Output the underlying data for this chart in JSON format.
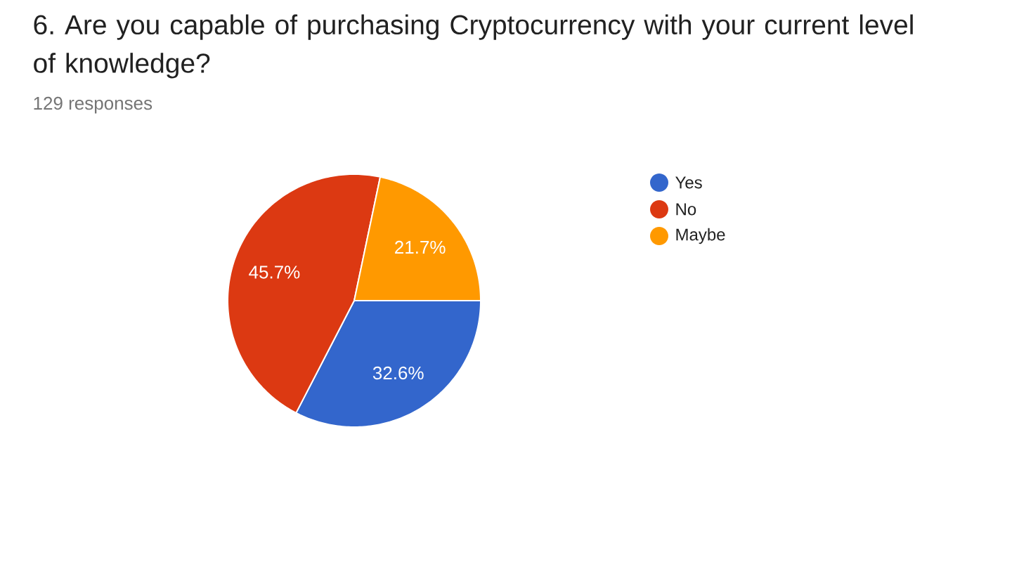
{
  "chart_data": {
    "type": "pie",
    "title": "6. Are you capable of purchasing Cryptocurrency with your current level of knowledge?",
    "subtitle": "129 responses",
    "categories": [
      "Yes",
      "No",
      "Maybe"
    ],
    "values": [
      32.6,
      45.7,
      21.7
    ],
    "colors": [
      "#3366cc",
      "#dc3912",
      "#ff9900"
    ],
    "value_labels": [
      "32.6%",
      "45.7%",
      "21.7%"
    ],
    "legend": "right"
  }
}
